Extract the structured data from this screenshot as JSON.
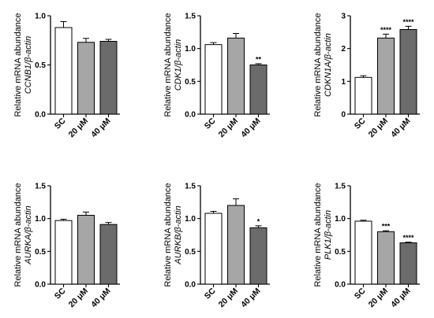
{
  "colors": {
    "SC": "#ffffff",
    "20 μM": "#a6a6a6",
    "40 μM": "#6b6b6b",
    "axis": "#000000"
  },
  "chart_data": [
    {
      "type": "bar",
      "ylabel_line1": "Relative mRNA abundance",
      "ylabel_line2": "CCNB1/β-actin",
      "categories": [
        "SC",
        "20 μM",
        "40 μM"
      ],
      "values": [
        0.88,
        0.73,
        0.74
      ],
      "errors": [
        0.06,
        0.04,
        0.02
      ],
      "significance": [
        "",
        "",
        ""
      ],
      "ylim": [
        0,
        1.0
      ],
      "yticks": [
        0.0,
        0.5,
        1.0
      ],
      "ytick_labels": [
        "0.0",
        "0.5",
        "1.0"
      ]
    },
    {
      "type": "bar",
      "ylabel_line1": "Relative mRNA abundance",
      "ylabel_line2": "CDK1/β-actin",
      "categories": [
        "SC",
        "20 μM",
        "40 μM"
      ],
      "values": [
        1.06,
        1.16,
        0.75
      ],
      "errors": [
        0.03,
        0.07,
        0.02
      ],
      "significance": [
        "",
        "",
        "**"
      ],
      "ylim": [
        0,
        1.5
      ],
      "yticks": [
        0.0,
        0.5,
        1.0,
        1.5
      ],
      "ytick_labels": [
        "0.0",
        "0.5",
        "1.0",
        "1.5"
      ]
    },
    {
      "type": "bar",
      "ylabel_line1": "Relative mRNA abundance",
      "ylabel_line2": "CDKN1A/β-actin",
      "categories": [
        "SC",
        "20 μM",
        "40 μM"
      ],
      "values": [
        1.12,
        2.32,
        2.58
      ],
      "errors": [
        0.05,
        0.12,
        0.1
      ],
      "significance": [
        "",
        "****",
        "****"
      ],
      "ylim": [
        0,
        3
      ],
      "yticks": [
        0,
        1,
        2,
        3
      ],
      "ytick_labels": [
        "0",
        "1",
        "2",
        "3"
      ]
    },
    {
      "type": "bar",
      "ylabel_line1": "Relative mRNA abundance",
      "ylabel_line2": "AURKA/β-actin",
      "categories": [
        "SC",
        "20 μM",
        "40 μM"
      ],
      "values": [
        0.97,
        1.05,
        0.91
      ],
      "errors": [
        0.02,
        0.05,
        0.03
      ],
      "significance": [
        "",
        "",
        ""
      ],
      "ylim": [
        0,
        1.5
      ],
      "yticks": [
        0.0,
        0.5,
        1.0,
        1.5
      ],
      "ytick_labels": [
        "0.0",
        "0.5",
        "1.0",
        "1.5"
      ]
    },
    {
      "type": "bar",
      "ylabel_line1": "Relative mRNA abundance",
      "ylabel_line2": "AURKB/β-actin",
      "categories": [
        "SC",
        "20 μM",
        "40 μM"
      ],
      "values": [
        1.08,
        1.2,
        0.86
      ],
      "errors": [
        0.03,
        0.1,
        0.03
      ],
      "significance": [
        "",
        "",
        "*"
      ],
      "ylim": [
        0,
        1.5
      ],
      "yticks": [
        0.0,
        0.5,
        1.0,
        1.5
      ],
      "ytick_labels": [
        "0.0",
        "0.5",
        "1.0",
        "1.5"
      ]
    },
    {
      "type": "bar",
      "ylabel_line1": "Relative mRNA abundance",
      "ylabel_line2": "PLK1/β-actin",
      "categories": [
        "SC",
        "20 μM",
        "40 μM"
      ],
      "values": [
        0.96,
        0.8,
        0.63
      ],
      "errors": [
        0.015,
        0.015,
        0.01
      ],
      "significance": [
        "",
        "***",
        "****"
      ],
      "ylim": [
        0,
        1.5
      ],
      "yticks": [
        0.0,
        0.5,
        1.0,
        1.5
      ],
      "ytick_labels": [
        "0.0",
        "0.5",
        "1.0",
        "1.5"
      ]
    }
  ]
}
